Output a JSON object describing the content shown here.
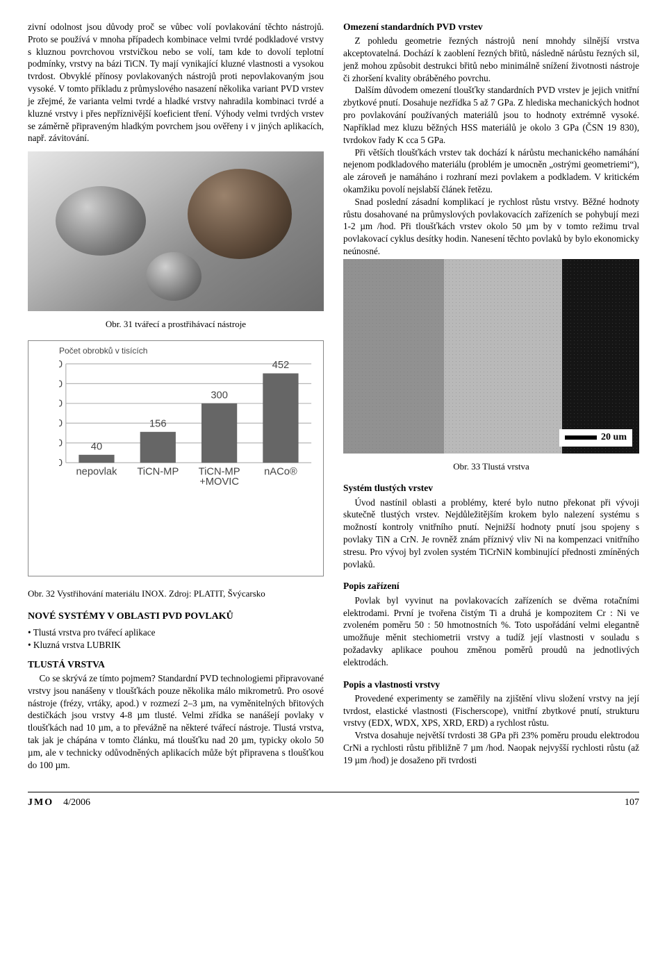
{
  "left": {
    "para1": "zivní odolnost jsou důvody proč se vůbec volí povlakování těchto nástrojů. Proto se používá v mnoha případech kombinace velmi tvrdé podkladové vrstvy s kluznou povrchovou vrstvičkou nebo se volí, tam kde to dovolí teplotní podmínky, vrstvy na bázi TiCN. Ty mají vynikající kluzné vlastnosti a vysokou tvrdost. Obvyklé přínosy povlakovaných nástrojů proti nepovlakovaným jsou vysoké. V tomto příkladu z průmyslového nasazení několika variant PVD vrstev je zřejmé, že varianta velmi tvrdé a hladké vrstvy nahradila kombinaci tvrdé a kluzné vrstvy i přes nepříznivější koeficient tření. Výhody velmi tvrdých vrstev se záměrně připraveným hladkým povrchem jsou ověřeny i v jiných aplikacích, např. závitování.",
    "fig31": "Obr. 31  tvářecí a prostřihávací nástroje",
    "chart": {
      "type": "bar",
      "ylabel": "Počet obrobků v tisících",
      "ylim": [
        0,
        500
      ],
      "ytick_step": 100,
      "categories": [
        "nepovlak",
        "TiCN-MP",
        "TiCN-MP\n+MOVIC",
        "nACo®"
      ],
      "values": [
        40,
        156,
        300,
        452
      ],
      "bar_color": "#666666",
      "grid_color": "#b6b6b6",
      "axis_color": "#888888",
      "background_color": "#ffffff",
      "label_color": "#444444",
      "label_fontsize": 12,
      "bar_width": 0.58
    },
    "fig32": "Obr. 32  Vystřihování materiálu INOX. Zdroj: PLATIT, Švýcarsko",
    "sec_new_title": "NOVÉ SYSTÉMY V OBLASTI PVD POVLAKŮ",
    "bullets": [
      "Tlustá vrstva pro tvářecí aplikace",
      "Kluzná vrstva LUBRIK"
    ],
    "sec_tlusta_title": "TLUSTÁ VRSTVA",
    "sec_tlusta_body": "Co se skrývá ze tímto pojmem? Standardní PVD technologiemi připravované vrstvy jsou nanášeny v tloušťkách pouze několika málo mikrometrů. Pro osové nástroje (frézy, vrtáky, apod.) v rozmezí 2–3 µm, na vyměnitelných břitových destičkách jsou vrstvy 4-8 µm tlusté. Velmi zřídka se nanášejí povlaky v tloušťkách nad 10 µm, a to převážně na některé tvářecí nástroje. Tlustá vrstva, tak jak je chápána v tomto článku, má tloušťku nad 20 µm, typicky okolo 50 µm, ale v technicky odůvodněných aplikacích může být připravena s tloušťkou do 100 µm."
  },
  "right": {
    "sec_omezeni_title": "Omezení standardních PVD vrstev",
    "p_omez1": "Z pohledu geometrie řezných nástrojů není mnohdy silnější vrstva akceptovatelná. Dochází k zaoblení řezných břitů, následně nárůstu řezných sil, jenž mohou způsobit destrukci břitů nebo minimálně snížení životnosti nástroje či zhoršení kvality obráběného povrchu.",
    "p_omez2": "Dalším důvodem omezení tloušťky standardních PVD vrstev je jejich vnitřní zbytkové pnutí. Dosahuje nezřídka 5 až 7 GPa. Z hlediska mechanických hodnot pro povlakování používaných materiálů jsou to hodnoty extrémně vysoké. Například mez kluzu běžných HSS materiálů je okolo 3 GPa (ČSN 19 830), tvrdokov řady K cca 5 GPa.",
    "p_omez3": "Při větších tloušťkách vrstev tak dochází k nárůstu mechanického namáhání nejenom podkladového materiálu (problém je umocněn „ostrými geometriemi“), ale zároveň je namáháno i rozhraní mezi povlakem a podkladem. V kritickém okamžiku povolí nejslabší článek řetězu.",
    "p_omez4": "Snad poslední zásadní komplikací je rychlost růstu vrstvy. Běžné hodnoty růstu dosahované na průmyslových povlakovacích zařízeních se pohybují mezi 1-2 µm /hod. Při tloušťkách vrstev okolo 50 µm by v tomto režimu trval povlakovací cyklus desítky hodin. Nanesení těchto povlaků by bylo ekonomicky neúnosné.",
    "fig33": "Obr. 33  Tlustá vrstva",
    "scalebar": "20 um",
    "sec_system_title": "Systém tlustých vrstev",
    "p_system": "Úvod nastínil oblasti a problémy, které bylo nutno překonat při vývoji skutečně tlustých vrstev. Nejdůležitějším krokem bylo nalezení systému s možností kontroly vnitřního pnutí. Nejnižší hodnoty pnutí jsou spojeny s povlaky TiN a CrN. Je rovněž znám příznivý vliv Ni na kompenzaci vnitřního stresu. Pro vývoj byl zvolen systém TiCrNiN kombinující přednosti zmíněných povlaků.",
    "sec_popis_title": "Popis zařízení",
    "p_popis": "Povlak byl vyvinut na povlakovacích zařízeních se dvěma rotačními elektrodami. První je tvořena čistým Ti a druhá je kompozitem Cr : Ni ve zvoleném poměru 50 : 50 hmotnostních %. Toto uspořádání velmi elegantně umožňuje měnit stechiometrii vrstvy a tudíž její vlastnosti v souladu s požadavky aplikace pouhou změnou poměrů proudů na jednotlivých elektrodách.",
    "sec_vlast_title": "Popis a vlastnosti vrstvy",
    "p_vlast1": "Provedené experimenty se zaměřily na zjištění vlivu složení vrstvy na její tvrdost, elastické vlastnosti (Fischerscope), vnitřní zbytkové pnutí, strukturu vrstvy (EDX, WDX, XPS, XRD, ERD) a rychlost růstu.",
    "p_vlast2": "Vrstva dosahuje největší tvrdosti 38 GPa při 23% poměru proudu elektrodou CrNi a rychlosti růstu přibližně 7 µm /hod. Naopak nejvyšší rychlosti růstu (až 19 µm /hod) je dosaženo při tvrdosti"
  },
  "footer": {
    "mag": "JMO",
    "issue": "4/2006",
    "page": "107"
  }
}
